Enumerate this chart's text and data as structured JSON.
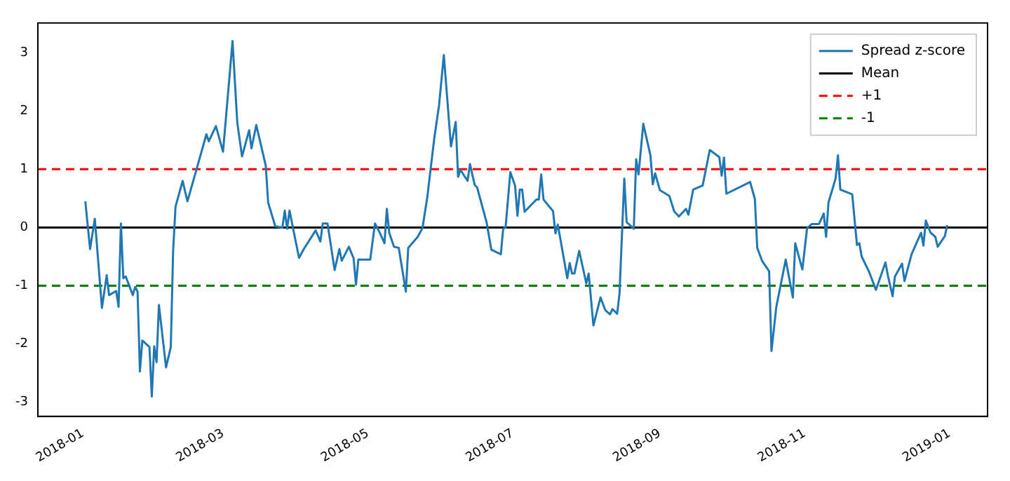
{
  "chart_data": {
    "type": "line",
    "x": [
      "2018-01-02",
      "2018-01-04",
      "2018-01-06",
      "2018-01-09",
      "2018-01-11",
      "2018-01-12",
      "2018-01-15",
      "2018-01-16",
      "2018-01-17",
      "2018-01-18",
      "2018-01-19",
      "2018-01-22",
      "2018-01-23",
      "2018-01-24",
      "2018-01-25",
      "2018-01-26",
      "2018-01-29",
      "2018-01-30",
      "2018-01-31",
      "2018-02-01",
      "2018-02-02",
      "2018-02-05",
      "2018-02-07",
      "2018-02-08",
      "2018-02-09",
      "2018-02-12",
      "2018-02-14",
      "2018-02-18",
      "2018-02-22",
      "2018-02-23",
      "2018-02-26",
      "2018-03-01",
      "2018-03-05",
      "2018-03-07",
      "2018-03-09",
      "2018-03-12",
      "2018-03-13",
      "2018-03-15",
      "2018-03-19",
      "2018-03-20",
      "2018-03-23",
      "2018-03-26",
      "2018-03-27",
      "2018-03-28",
      "2018-03-29",
      "2018-04-02",
      "2018-04-04",
      "2018-04-09",
      "2018-04-11",
      "2018-04-12",
      "2018-04-14",
      "2018-04-17",
      "2018-04-19",
      "2018-04-20",
      "2018-04-23",
      "2018-04-25",
      "2018-04-26",
      "2018-04-27",
      "2018-05-02",
      "2018-05-04",
      "2018-05-06",
      "2018-05-08",
      "2018-05-09",
      "2018-05-10",
      "2018-05-12",
      "2018-05-14",
      "2018-05-17",
      "2018-05-18",
      "2018-05-22",
      "2018-05-24",
      "2018-05-26",
      "2018-05-29",
      "2018-05-31",
      "2018-06-02",
      "2018-06-05",
      "2018-06-07",
      "2018-06-08",
      "2018-06-09",
      "2018-06-12",
      "2018-06-13",
      "2018-06-15",
      "2018-06-16",
      "2018-06-20",
      "2018-06-22",
      "2018-06-26",
      "2018-06-27",
      "2018-06-28",
      "2018-06-30",
      "2018-07-02",
      "2018-07-03",
      "2018-07-04",
      "2018-07-05",
      "2018-07-06",
      "2018-07-11",
      "2018-07-12",
      "2018-07-13",
      "2018-07-14",
      "2018-07-18",
      "2018-07-19",
      "2018-07-20",
      "2018-07-24",
      "2018-07-25",
      "2018-07-26",
      "2018-07-27",
      "2018-07-29",
      "2018-08-01",
      "2018-08-02",
      "2018-08-04",
      "2018-08-07",
      "2018-08-09",
      "2018-08-11",
      "2018-08-12",
      "2018-08-14",
      "2018-08-15",
      "2018-08-17",
      "2018-08-18",
      "2018-08-21",
      "2018-08-22",
      "2018-08-23",
      "2018-08-25",
      "2018-08-28",
      "2018-08-29",
      "2018-08-30",
      "2018-09-01",
      "2018-09-05",
      "2018-09-07",
      "2018-09-09",
      "2018-09-12",
      "2018-09-13",
      "2018-09-15",
      "2018-09-19",
      "2018-09-22",
      "2018-09-26",
      "2018-09-27",
      "2018-09-28",
      "2018-09-29",
      "2018-10-09",
      "2018-10-11",
      "2018-10-12",
      "2018-10-14",
      "2018-10-17",
      "2018-10-18",
      "2018-10-20",
      "2018-10-24",
      "2018-10-25",
      "2018-10-27",
      "2018-10-28",
      "2018-10-31",
      "2018-11-02",
      "2018-11-04",
      "2018-11-07",
      "2018-11-09",
      "2018-11-10",
      "2018-11-11",
      "2018-11-14",
      "2018-11-15",
      "2018-11-16",
      "2018-11-21",
      "2018-11-23",
      "2018-11-24",
      "2018-11-25",
      "2018-11-28",
      "2018-12-01",
      "2018-12-05",
      "2018-12-06",
      "2018-12-08",
      "2018-12-09",
      "2018-12-12",
      "2018-12-13",
      "2018-12-16",
      "2018-12-20",
      "2018-12-21",
      "2018-12-22",
      "2018-12-24",
      "2018-12-26",
      "2018-12-27",
      "2018-12-30",
      "2018-12-31"
    ],
    "series": [
      {
        "name": "Spread z-score",
        "color": "#1f77b4",
        "values": [
          0.45,
          -0.37,
          0.15,
          -1.38,
          -0.82,
          -1.16,
          -1.09,
          -1.36,
          0.07,
          -0.87,
          -0.84,
          -1.16,
          -1.02,
          -1.1,
          -2.47,
          -1.94,
          -2.05,
          -2.9,
          -2.04,
          -2.31,
          -1.33,
          -2.4,
          -2.05,
          -0.38,
          0.36,
          0.8,
          0.45,
          1.02,
          1.6,
          1.48,
          1.74,
          1.3,
          3.2,
          1.8,
          1.22,
          1.67,
          1.36,
          1.76,
          1.06,
          0.43,
          0.02,
          0,
          0.29,
          -0.02,
          0.29,
          -0.52,
          -0.37,
          -0.05,
          -0.24,
          0.07,
          0.07,
          -0.73,
          -0.37,
          -0.57,
          -0.33,
          -0.53,
          -0.98,
          -0.55,
          -0.55,
          0.07,
          -0.09,
          -0.27,
          0.32,
          -0.09,
          -0.33,
          -0.35,
          -1.1,
          -0.35,
          -0.16,
          -0.01,
          0.51,
          1.54,
          2.1,
          2.96,
          1.39,
          1.81,
          0.87,
          0.99,
          0.8,
          1.09,
          0.73,
          0.69,
          0.09,
          -0.38,
          -0.46,
          -0.02,
          0,
          0.95,
          0.72,
          0.2,
          0.65,
          0.65,
          0.27,
          0.48,
          0.48,
          0.91,
          0.48,
          0.28,
          -0.1,
          0.05,
          -0.87,
          -0.61,
          -0.79,
          -0.79,
          -0.4,
          -0.96,
          -0.79,
          -1.68,
          -1.2,
          -1.42,
          -1.49,
          -1.4,
          -1.48,
          -1.13,
          0.84,
          0.09,
          -0.02,
          1.17,
          0.91,
          1.78,
          1.24,
          0.74,
          0.93,
          0.64,
          0.54,
          0.28,
          0.19,
          0.32,
          0.22,
          0.65,
          0.72,
          1.33,
          1.21,
          0.89,
          1.2,
          0.58,
          0.78,
          0.49,
          -0.35,
          -0.57,
          -0.75,
          -2.12,
          -1.37,
          -0.55,
          -0.77,
          -1.2,
          -0.27,
          -0.72,
          -0.01,
          0.06,
          0.06,
          0.24,
          -0.16,
          0.43,
          0.84,
          1.24,
          0.65,
          0.57,
          -0.3,
          -0.27,
          -0.5,
          -0.75,
          -1.07,
          -0.6,
          -0.82,
          -1.18,
          -0.84,
          -0.62,
          -0.92,
          -0.46,
          -0.09,
          -0.31,
          0.12,
          -0.09,
          -0.16,
          -0.33,
          -0.15,
          0.04
        ]
      }
    ],
    "ref_lines": [
      {
        "axis": "y",
        "value": 0,
        "label": "Mean",
        "color": "#000000",
        "line_style": "solid"
      },
      {
        "axis": "y",
        "value": 1,
        "label": "+1",
        "color": "#ff0000",
        "line_style": "dashed"
      },
      {
        "axis": "y",
        "value": -1,
        "label": "-1",
        "color": "#008000",
        "line_style": "dashed"
      }
    ],
    "xlim": [
      "2017-12-13",
      "2019-01-17"
    ],
    "xticks": [
      "2018-01",
      "2018-03",
      "2018-05",
      "2018-07",
      "2018-09",
      "2018-11",
      "2019-01"
    ],
    "ylim": [
      -3.24,
      3.51
    ],
    "yticks": [
      -3,
      -2,
      -1,
      0,
      1,
      2,
      3
    ],
    "grid": false,
    "legend": "top right",
    "marker": "none",
    "line_style": "solid"
  }
}
